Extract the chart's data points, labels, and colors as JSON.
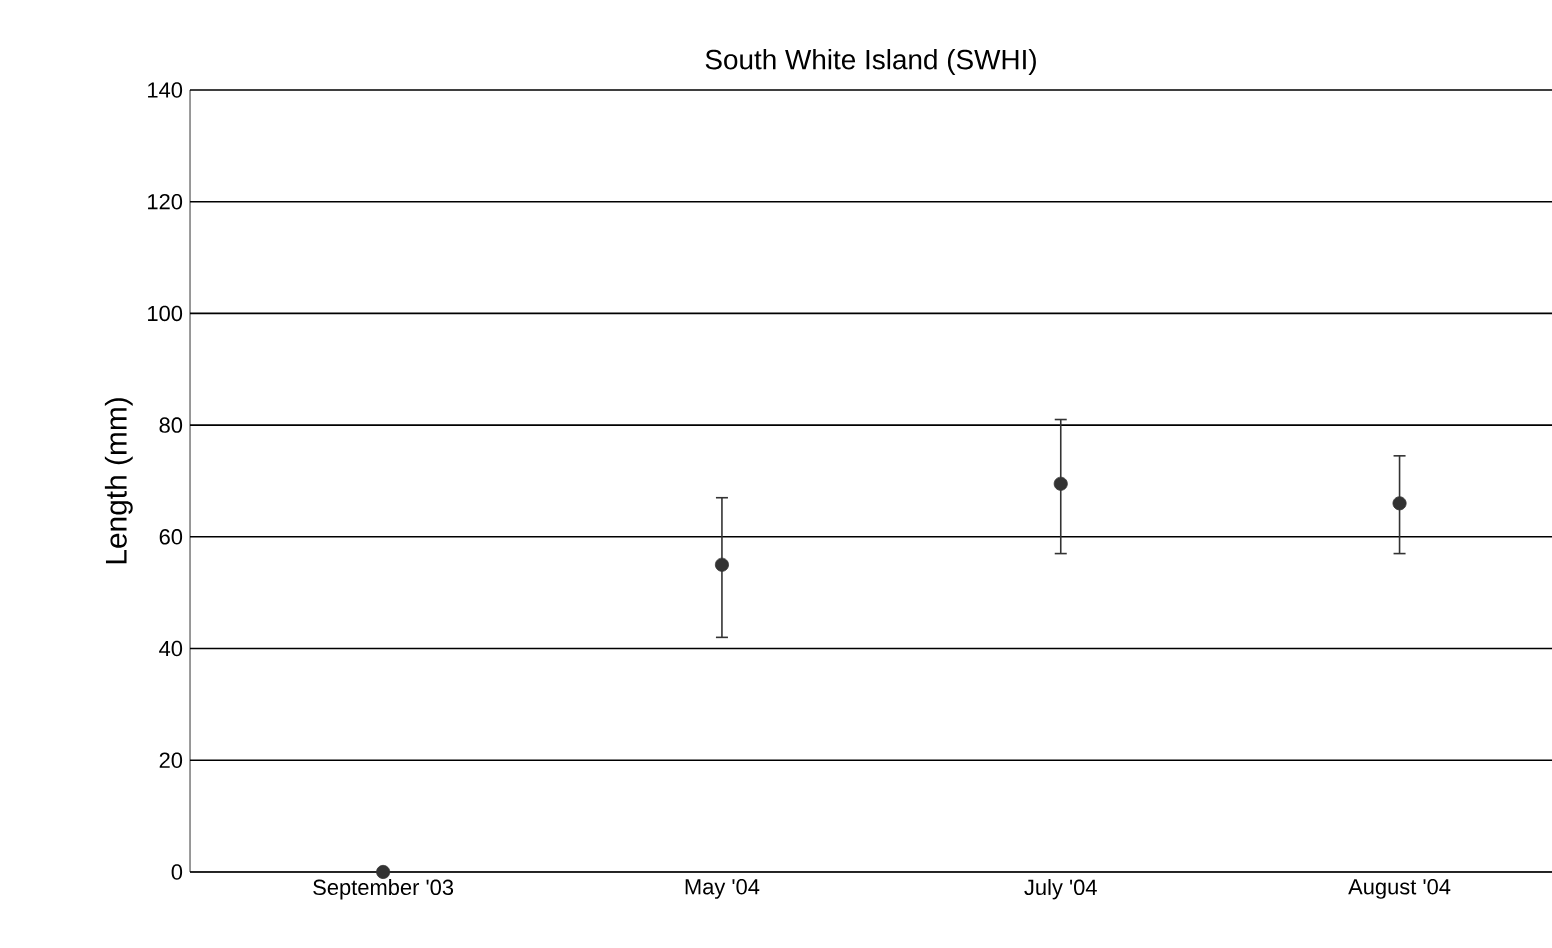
{
  "chart_data": {
    "type": "scatter",
    "title": "South White Island (SWHI)",
    "ylabel": "Length (mm)",
    "categories": [
      "September '03",
      "May '04",
      "July '04",
      "August '04"
    ],
    "values": [
      0,
      55,
      69.5,
      66
    ],
    "errors": [
      null,
      [
        42,
        67
      ],
      [
        57,
        81
      ],
      [
        57,
        74.5
      ]
    ],
    "color": "#333333",
    "marker": "circle",
    "ylim": [
      0,
      140
    ],
    "yticks": [
      0,
      20,
      40,
      60,
      80,
      100,
      120,
      140
    ],
    "grid": "y"
  }
}
